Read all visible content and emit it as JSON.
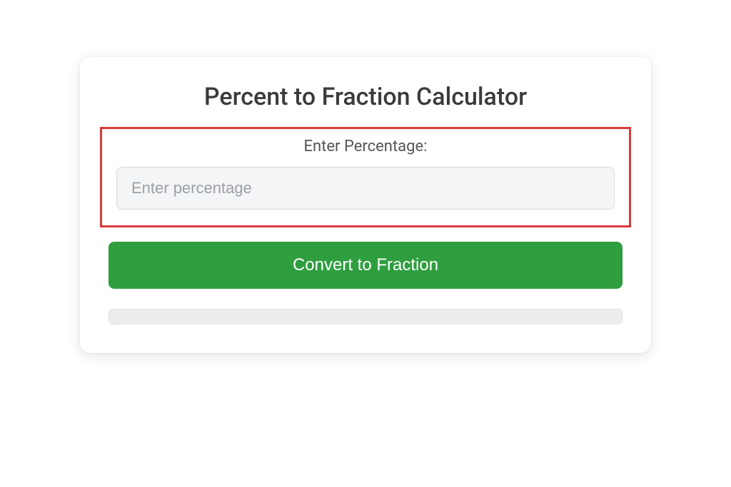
{
  "card": {
    "title": "Percent to Fraction Calculator",
    "input_section": {
      "label": "Enter Percentage:",
      "placeholder": "Enter percentage",
      "value": "",
      "highlight_border_color": "#d93a3a",
      "input_background": "#f4f5f6",
      "input_border_color": "#d7d9db"
    },
    "button": {
      "label": "Convert to Fraction",
      "background_color": "#2e9e3f",
      "text_color": "#ffffff"
    },
    "result_bar": {
      "background_color": "#eceded",
      "border_color": "#e1e2e3"
    },
    "card_background": "#ffffff",
    "title_color": "#3b3b3b",
    "label_color": "#555555"
  }
}
